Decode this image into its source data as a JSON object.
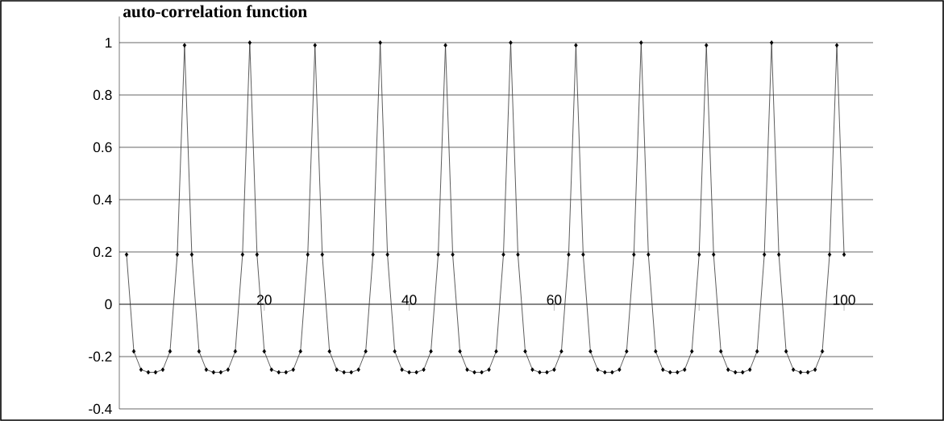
{
  "chart_data": {
    "type": "line",
    "title": "auto-correlation function",
    "x": [
      1,
      2,
      3,
      4,
      5,
      6,
      7,
      8,
      9,
      10,
      11,
      12,
      13,
      14,
      15,
      16,
      17,
      18,
      19,
      20,
      21,
      22,
      23,
      24,
      25,
      26,
      27,
      28,
      29,
      30,
      31,
      32,
      33,
      34,
      35,
      36,
      37,
      38,
      39,
      40,
      41,
      42,
      43,
      44,
      45,
      46,
      47,
      48,
      49,
      50,
      51,
      52,
      53,
      54,
      55,
      56,
      57,
      58,
      59,
      60,
      61,
      62,
      63,
      64,
      65,
      66,
      67,
      68,
      69,
      70,
      71,
      72,
      73,
      74,
      75,
      76,
      77,
      78,
      79,
      80,
      81,
      82,
      83,
      84,
      85,
      86,
      87,
      88,
      89,
      90,
      91,
      92,
      93,
      94,
      95,
      96,
      97,
      98,
      99,
      100
    ],
    "values": [
      0.19,
      -0.18,
      -0.25,
      -0.26,
      -0.26,
      -0.25,
      -0.18,
      0.19,
      0.99,
      0.19,
      -0.18,
      -0.25,
      -0.26,
      -0.26,
      -0.25,
      -0.18,
      0.19,
      1.0,
      0.19,
      -0.18,
      -0.25,
      -0.26,
      -0.26,
      -0.25,
      -0.18,
      0.19,
      0.99,
      0.19,
      -0.18,
      -0.25,
      -0.26,
      -0.26,
      -0.25,
      -0.18,
      0.19,
      1.0,
      0.19,
      -0.18,
      -0.25,
      -0.26,
      -0.26,
      -0.25,
      -0.18,
      0.19,
      0.99,
      0.19,
      -0.18,
      -0.25,
      -0.26,
      -0.26,
      -0.25,
      -0.18,
      0.19,
      1.0,
      0.19,
      -0.18,
      -0.25,
      -0.26,
      -0.26,
      -0.25,
      -0.18,
      0.19,
      0.99,
      0.19,
      -0.18,
      -0.25,
      -0.26,
      -0.26,
      -0.25,
      -0.18,
      0.19,
      1.0,
      0.19,
      -0.18,
      -0.25,
      -0.26,
      -0.26,
      -0.25,
      -0.18,
      0.19,
      0.99,
      0.19,
      -0.18,
      -0.25,
      -0.26,
      -0.26,
      -0.25,
      -0.18,
      0.19,
      1.0,
      0.19,
      -0.18,
      -0.25,
      -0.26,
      -0.26,
      -0.25,
      -0.18,
      0.19,
      0.99,
      0.19
    ],
    "color": "#333333",
    "xlim": [
      0,
      104
    ],
    "ylim": [
      -0.4,
      1.1
    ],
    "xticks": [
      20,
      40,
      60,
      {
        "value": 80,
        "label": null
      },
      100
    ],
    "yticks": [
      -0.4,
      -0.2,
      0,
      0.2,
      0.4,
      0.6,
      0.8,
      1
    ],
    "grid": "y",
    "marker": "diamond",
    "line_style": "solid"
  }
}
